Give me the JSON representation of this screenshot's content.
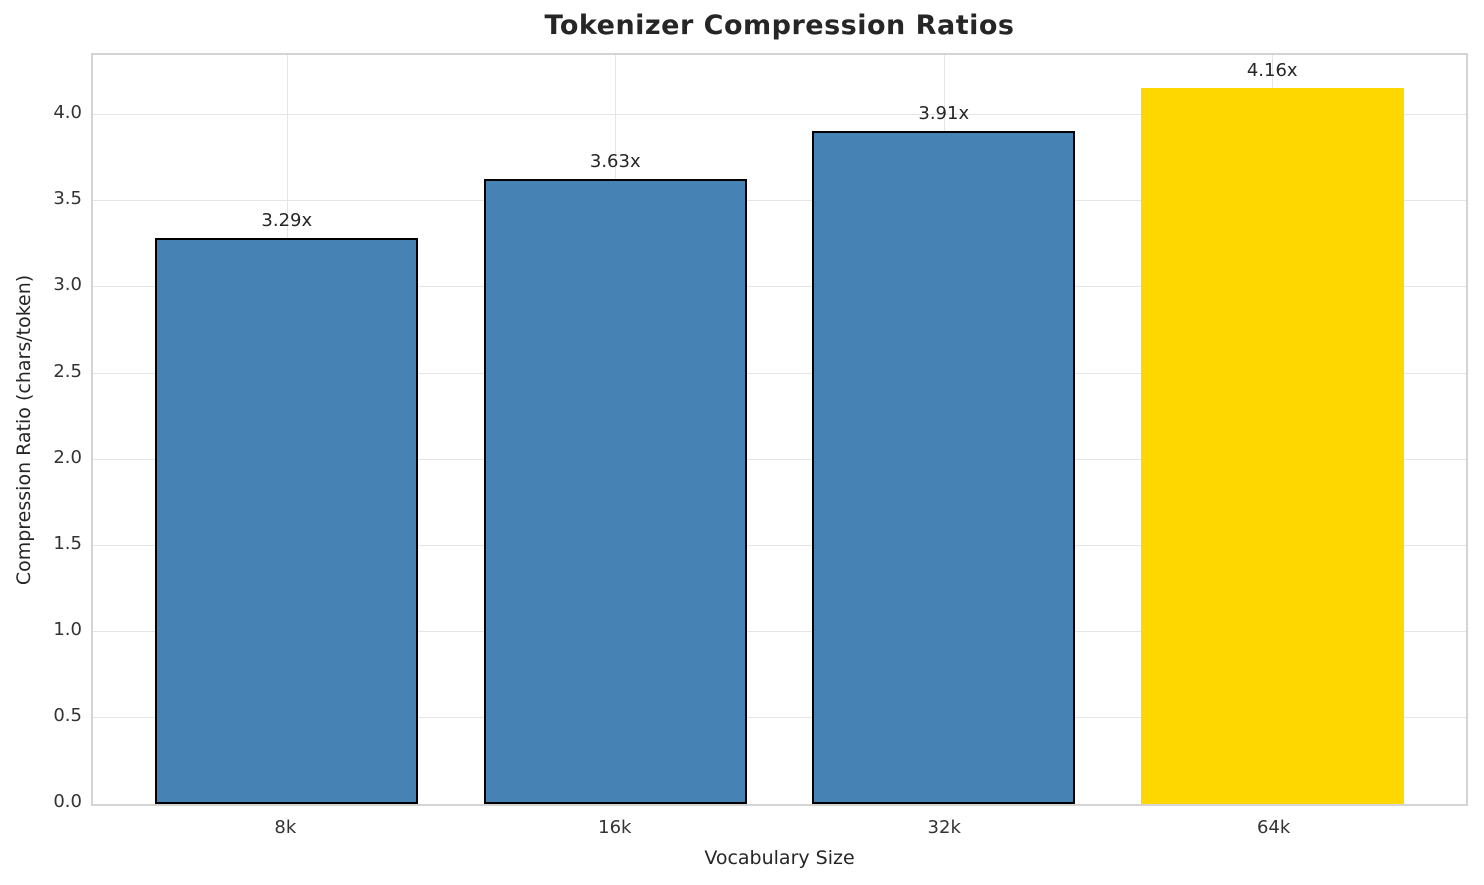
{
  "chart_data": {
    "type": "bar",
    "title": "Tokenizer Compression Ratios",
    "xlabel": "Vocabulary Size",
    "ylabel": "Compression Ratio (chars/token)",
    "categories": [
      "8k",
      "16k",
      "32k",
      "64k"
    ],
    "values": [
      3.29,
      3.63,
      3.91,
      4.16
    ],
    "bar_labels": [
      "3.29x",
      "3.63x",
      "3.91x",
      "4.16x"
    ],
    "bar_colors": [
      "#4682B4",
      "#4682B4",
      "#4682B4",
      "#FFD700"
    ],
    "bar_edge_colors": [
      "#000000",
      "#000000",
      "#000000",
      "none"
    ],
    "yticks": [
      0.0,
      0.5,
      1.0,
      1.5,
      2.0,
      2.5,
      3.0,
      3.5,
      4.0
    ],
    "ytick_labels": [
      "0.0",
      "0.5",
      "1.0",
      "1.5",
      "2.0",
      "2.5",
      "3.0",
      "3.5",
      "4.0"
    ],
    "ylim": [
      0,
      4.35
    ],
    "bar_width_frac": 0.8,
    "category_margin": 0.05,
    "grid": true,
    "legend": "none",
    "colors": {
      "grid": "#e5e5e5",
      "spine": "#d4d4d4",
      "title_text": "#262626",
      "tick_text": "#333333",
      "background": "#ffffff"
    }
  }
}
